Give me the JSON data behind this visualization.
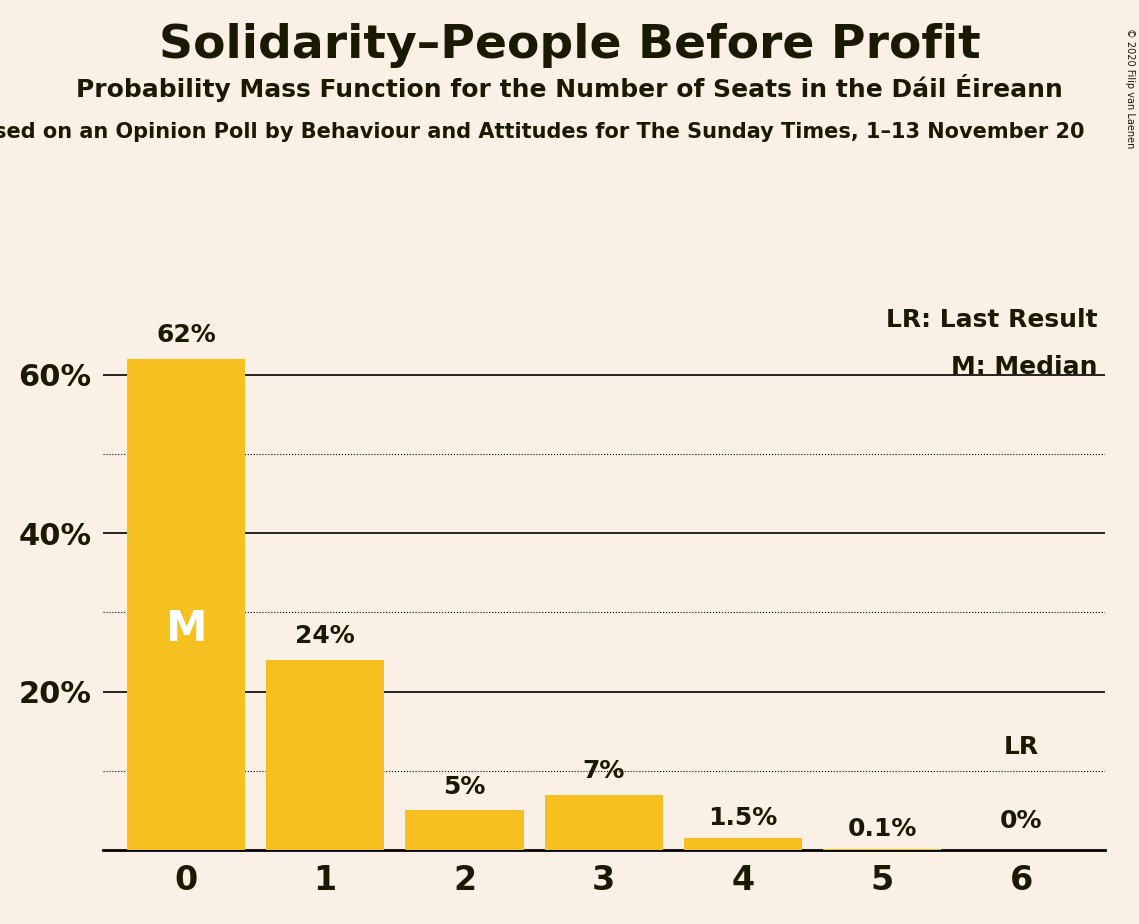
{
  "title": "Solidarity–People Before Profit",
  "subtitle": "Probability Mass Function for the Number of Seats in the Dáil Éireann",
  "source_line": "sed on an Opinion Poll by Behaviour and Attitudes for The Sunday Times, 1–13 November 20",
  "copyright": "© 2020 Filip van Laenen",
  "categories": [
    0,
    1,
    2,
    3,
    4,
    5,
    6
  ],
  "values": [
    62,
    24,
    5,
    7,
    1.5,
    0.1,
    0
  ],
  "bar_color": "#F5C020",
  "background_color": "#FAF0E6",
  "label_color": "#1a1a00",
  "median_label": "M",
  "median_bar": 0,
  "lr_bar": 6,
  "lr_label": "LR",
  "yticks": [
    20,
    40,
    60
  ],
  "ytick_labels": [
    "20%",
    "40%",
    "60%"
  ],
  "solid_gridlines": [
    20,
    40,
    60
  ],
  "dotted_gridlines": [
    10,
    30,
    50
  ],
  "ylim": [
    0,
    70
  ],
  "legend_lr": "LR: Last Result",
  "legend_m": "M: Median"
}
